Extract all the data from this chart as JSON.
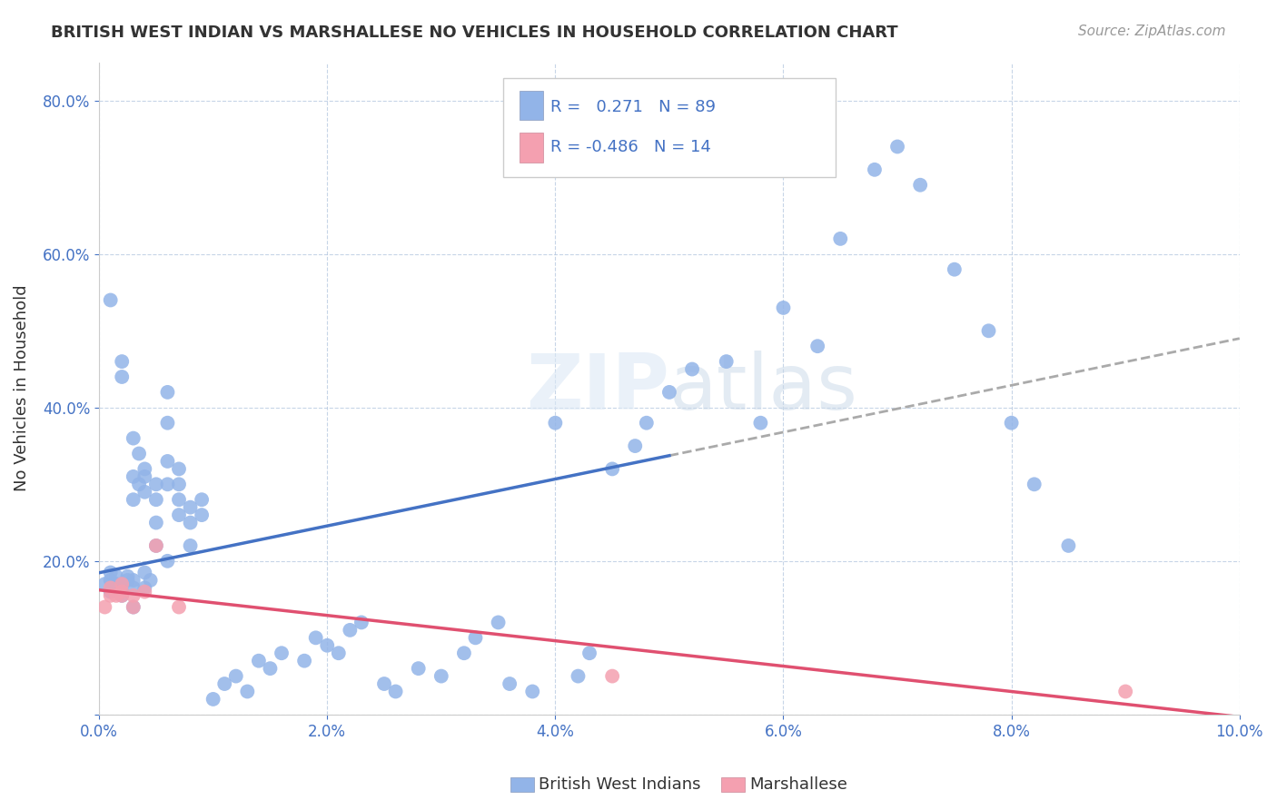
{
  "title": "BRITISH WEST INDIAN VS MARSHALLESE NO VEHICLES IN HOUSEHOLD CORRELATION CHART",
  "source": "Source: ZipAtlas.com",
  "ylabel": "No Vehicles in Household",
  "xlim": [
    0.0,
    0.1
  ],
  "ylim": [
    0.0,
    0.85
  ],
  "xtick_labels": [
    "0.0%",
    "2.0%",
    "4.0%",
    "6.0%",
    "8.0%",
    "10.0%"
  ],
  "ytick_labels": [
    "",
    "20.0%",
    "40.0%",
    "60.0%",
    "80.0%"
  ],
  "ytick_positions": [
    0.0,
    0.2,
    0.4,
    0.6,
    0.8
  ],
  "xtick_positions": [
    0.0,
    0.02,
    0.04,
    0.06,
    0.08,
    0.1
  ],
  "legend_label_1": "British West Indians",
  "legend_label_2": "Marshallese",
  "r1": 0.271,
  "n1": 89,
  "r2": -0.486,
  "n2": 14,
  "color_bwi": "#92b4e8",
  "color_marsh": "#f4a0b0",
  "color_bwi_line": "#4472c4",
  "color_marsh_line": "#e05070",
  "color_dash": "#aaaaaa",
  "watermark": "ZIPatlas",
  "bwi_x": [
    0.0005,
    0.001,
    0.001,
    0.001,
    0.001,
    0.0015,
    0.0015,
    0.002,
    0.002,
    0.002,
    0.002,
    0.002,
    0.0025,
    0.0025,
    0.003,
    0.003,
    0.003,
    0.003,
    0.003,
    0.003,
    0.0035,
    0.0035,
    0.004,
    0.004,
    0.004,
    0.004,
    0.004,
    0.0045,
    0.005,
    0.005,
    0.005,
    0.005,
    0.006,
    0.006,
    0.006,
    0.006,
    0.006,
    0.007,
    0.007,
    0.007,
    0.007,
    0.008,
    0.008,
    0.008,
    0.009,
    0.009,
    0.01,
    0.011,
    0.012,
    0.013,
    0.014,
    0.015,
    0.016,
    0.018,
    0.019,
    0.02,
    0.021,
    0.022,
    0.023,
    0.025,
    0.026,
    0.028,
    0.03,
    0.032,
    0.033,
    0.035,
    0.036,
    0.038,
    0.04,
    0.042,
    0.043,
    0.045,
    0.047,
    0.048,
    0.05,
    0.052,
    0.055,
    0.058,
    0.06,
    0.063,
    0.065,
    0.068,
    0.07,
    0.072,
    0.075,
    0.078,
    0.08,
    0.082,
    0.085
  ],
  "bwi_y": [
    0.17,
    0.16,
    0.175,
    0.54,
    0.185,
    0.17,
    0.18,
    0.155,
    0.16,
    0.17,
    0.44,
    0.46,
    0.175,
    0.18,
    0.14,
    0.31,
    0.36,
    0.165,
    0.175,
    0.28,
    0.3,
    0.34,
    0.165,
    0.185,
    0.32,
    0.29,
    0.31,
    0.175,
    0.22,
    0.25,
    0.3,
    0.28,
    0.2,
    0.38,
    0.42,
    0.33,
    0.3,
    0.32,
    0.3,
    0.28,
    0.26,
    0.25,
    0.27,
    0.22,
    0.26,
    0.28,
    0.02,
    0.04,
    0.05,
    0.03,
    0.07,
    0.06,
    0.08,
    0.07,
    0.1,
    0.09,
    0.08,
    0.11,
    0.12,
    0.04,
    0.03,
    0.06,
    0.05,
    0.08,
    0.1,
    0.12,
    0.04,
    0.03,
    0.38,
    0.05,
    0.08,
    0.32,
    0.35,
    0.38,
    0.42,
    0.45,
    0.46,
    0.38,
    0.53,
    0.48,
    0.62,
    0.71,
    0.74,
    0.69,
    0.58,
    0.5,
    0.38,
    0.3,
    0.22
  ],
  "marsh_x": [
    0.0005,
    0.001,
    0.001,
    0.0015,
    0.002,
    0.002,
    0.002,
    0.003,
    0.003,
    0.004,
    0.005,
    0.007,
    0.045,
    0.09
  ],
  "marsh_y": [
    0.14,
    0.155,
    0.165,
    0.155,
    0.155,
    0.16,
    0.17,
    0.14,
    0.155,
    0.16,
    0.22,
    0.14,
    0.05,
    0.03
  ]
}
